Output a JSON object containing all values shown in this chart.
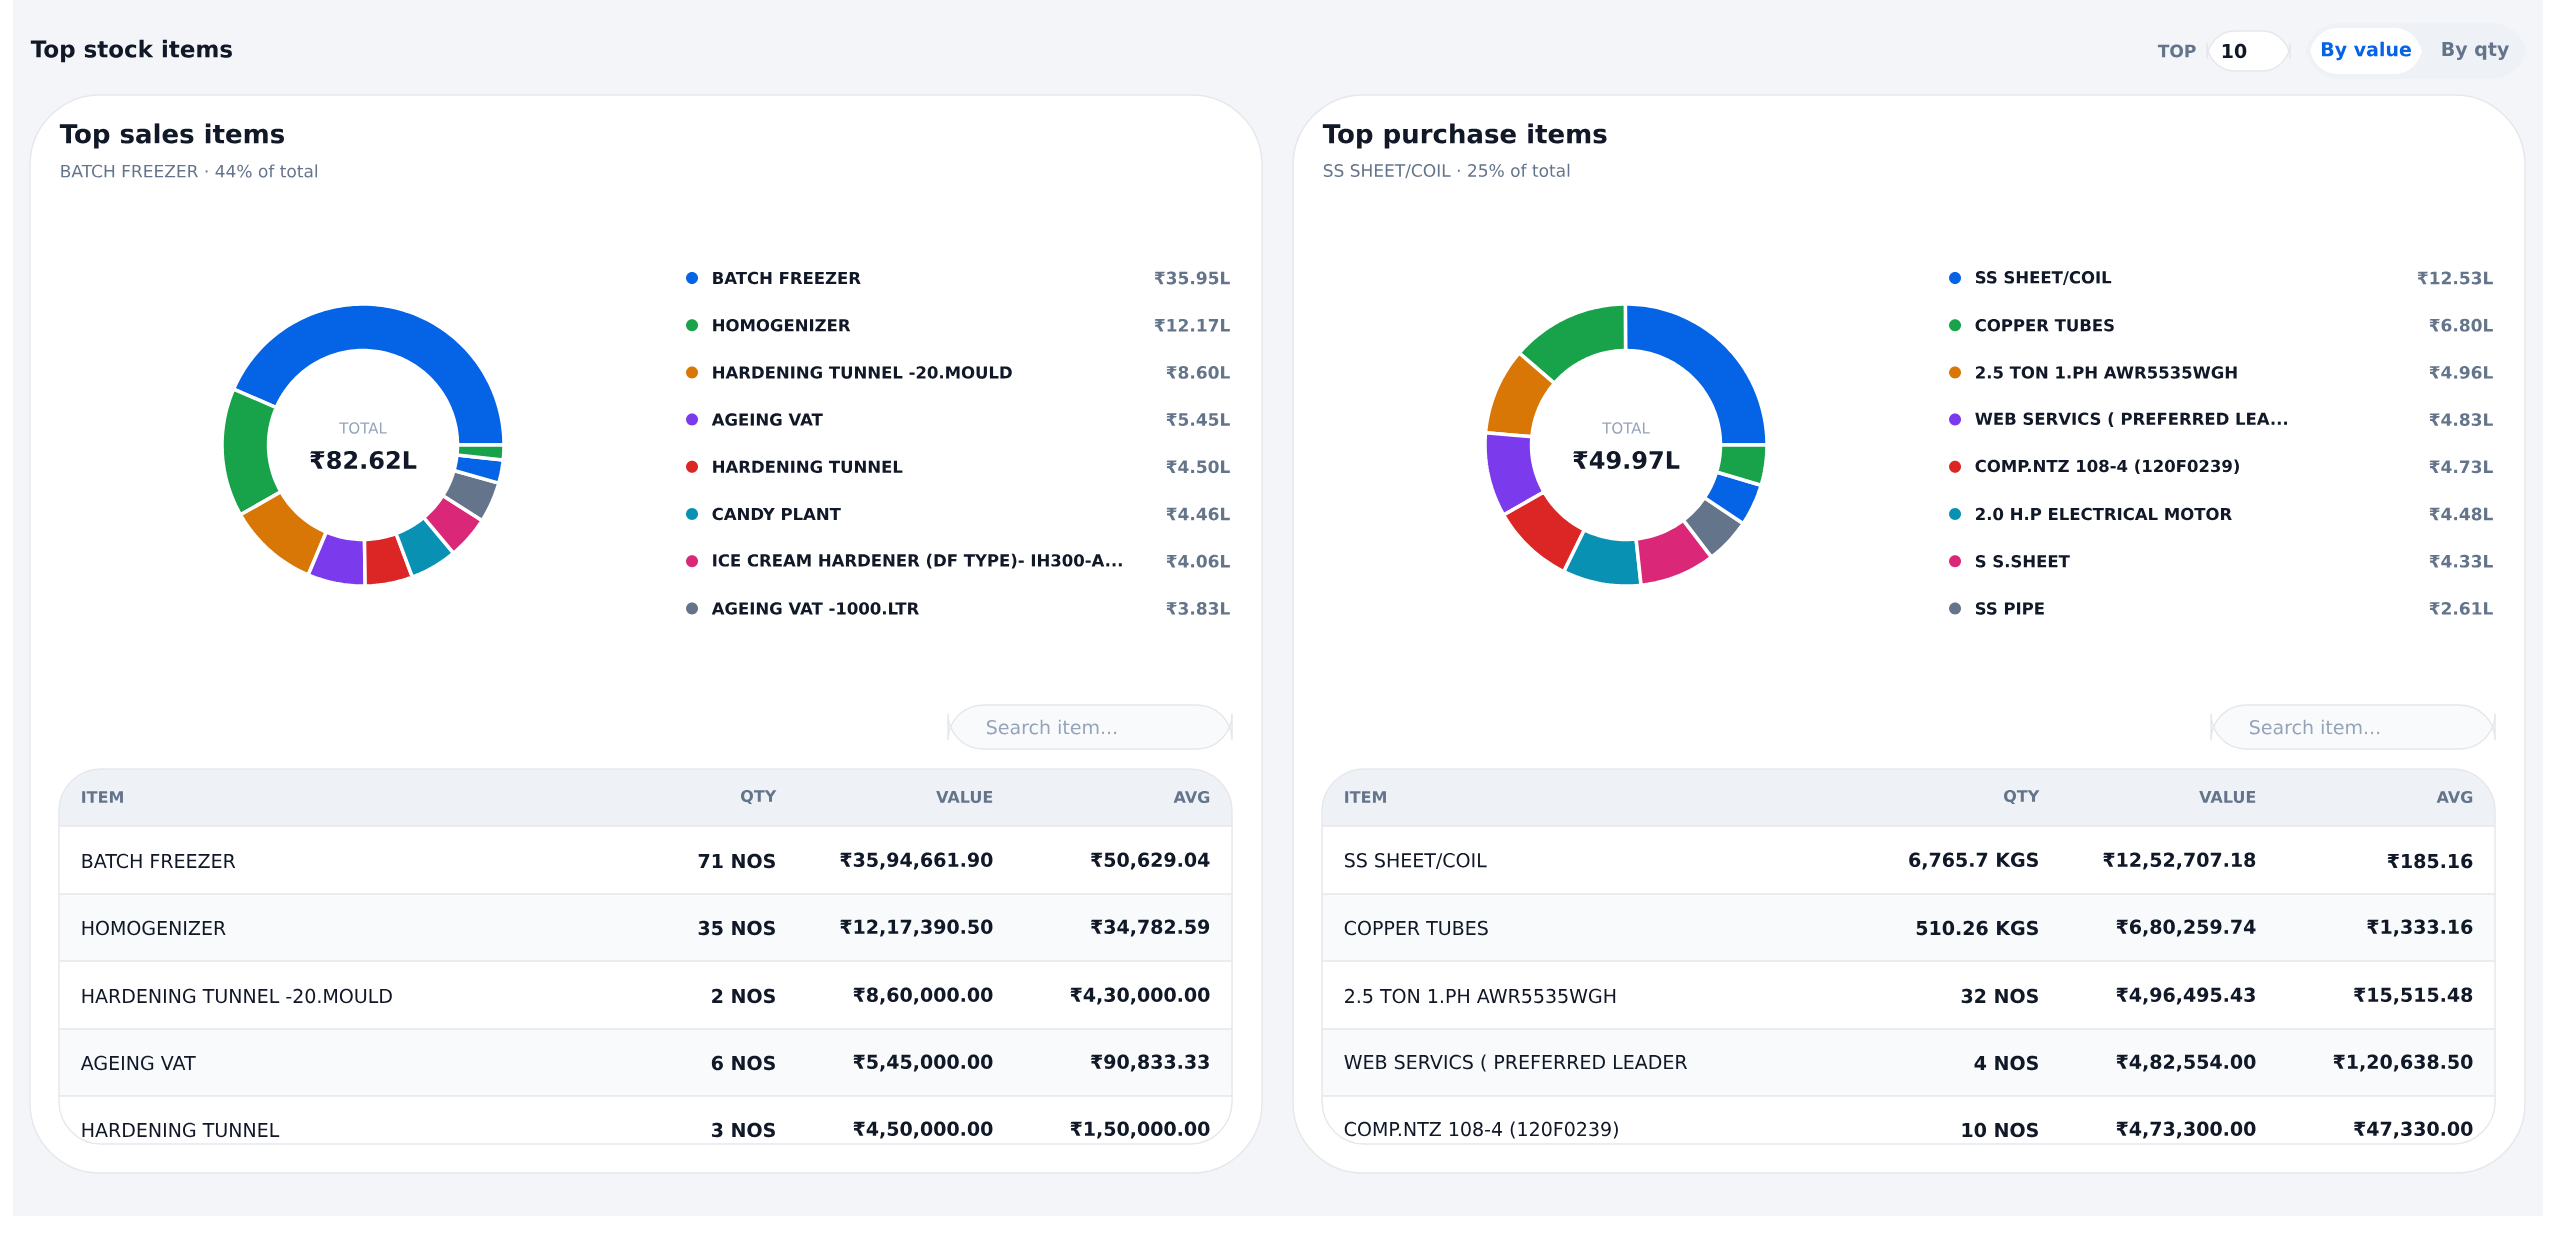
{
  "chart_data": [
    {
      "type": "other",
      "title": "Top stock items",
      "annotations": [
        "TOP",
        "10",
        "By value",
        "By qty"
      ]
    },
    {
      "type": "donut",
      "title": "Top sales items",
      "subtitle": "BATCH FREEZER · 44% of total",
      "legend": "right",
      "categories": [
        "BATCH FREEZER",
        "HOMOGENIZER",
        "HARDENING TUNNEL -20.MOULD",
        "AGEING VAT",
        "HARDENING TUNNEL",
        "CANDY PLANT",
        "ICE CREAM HARDENER (DF TYPE)- IH300-A...",
        "AGEING VAT -1000.LTR",
        null,
        null
      ],
      "values": [
        35.95,
        12.17,
        8.6,
        5.45,
        4.5,
        4.46,
        4.06,
        3.83,
        2.2,
        1.4
      ],
      "value_labels": [
        "₹35.95L",
        "₹12.17L",
        "₹8.60L",
        "₹5.45L",
        "₹4.50L",
        "₹4.46L",
        "₹4.06L",
        "₹3.83L",
        null,
        null
      ],
      "colors": [
        "#0563e5",
        "#18a34a",
        "#d97706",
        "#7c3aed",
        "#dc2626",
        "#0891b2",
        "#db2777",
        "#64748b",
        "#0563e5",
        "#18a34a"
      ],
      "annotations": [
        "TOTAL",
        "₹82.62L",
        "Search item...",
        "ITEM",
        "QTY",
        "VALUE",
        "AVG",
        "BATCH FREEZER",
        "71 NOS",
        "₹35,94,661.90",
        "₹50,629.04",
        "HOMOGENIZER",
        "35 NOS",
        "₹12,17,390.50",
        "₹34,782.59",
        "HARDENING TUNNEL -20.MOULD",
        "2 NOS",
        "₹8,60,000.00",
        "₹4,30,000.00",
        "AGEING VAT",
        "6 NOS",
        "₹5,45,000.00",
        "₹90,833.33",
        "HARDENING TUNNEL",
        "3 NOS",
        "₹4,50,000.00",
        "₹1,50,000.00"
      ]
    },
    {
      "type": "donut",
      "title": "Top purchase items",
      "subtitle": "SS SHEET/COIL · 25% of total",
      "legend": "right",
      "categories": [
        "SS SHEET/COIL",
        "COPPER TUBES",
        "2.5 TON 1.PH AWR5535WGH",
        "WEB SERVICS ( PREFERRED LEA...",
        "COMP.NTZ 108-4 (120F0239)",
        "2.0 H.P ELECTRICAL MOTOR",
        "S S.SHEET",
        "SS PIPE",
        null,
        null
      ],
      "values": [
        12.53,
        6.8,
        4.96,
        4.83,
        4.73,
        4.48,
        4.33,
        2.61,
        2.4,
        2.3
      ],
      "value_labels": [
        "₹12.53L",
        "₹6.80L",
        "₹4.96L",
        "₹4.83L",
        "₹4.73L",
        "₹4.48L",
        "₹4.33L",
        "₹2.61L",
        null,
        null
      ],
      "colors": [
        "#0563e5",
        "#18a34a",
        "#d97706",
        "#7c3aed",
        "#dc2626",
        "#0891b2",
        "#db2777",
        "#64748b",
        "#0563e5",
        "#18a34a"
      ],
      "annotations": [
        "TOTAL",
        "₹49.97L",
        "Search item...",
        "ITEM",
        "QTY",
        "VALUE",
        "AVG",
        "SS SHEET/COIL",
        "6,765.7 KGS",
        "₹12,52,707.18",
        "₹185.16",
        "COPPER TUBES",
        "510.26 KGS",
        "₹6,80,259.74",
        "₹1,333.16",
        "2.5 TON 1.PH AWR5535WGH",
        "32 NOS",
        "₹4,96,495.43",
        "₹15,515.48",
        "WEB SERVICS ( PREFERRED LEADER",
        "4 NOS",
        "₹4,82,554.00",
        "₹1,20,638.50",
        "COMP.NTZ 108-4 (120F0239)",
        "10 NOS",
        "₹4,73,300.00",
        "₹47,330.00"
      ]
    }
  ]
}
